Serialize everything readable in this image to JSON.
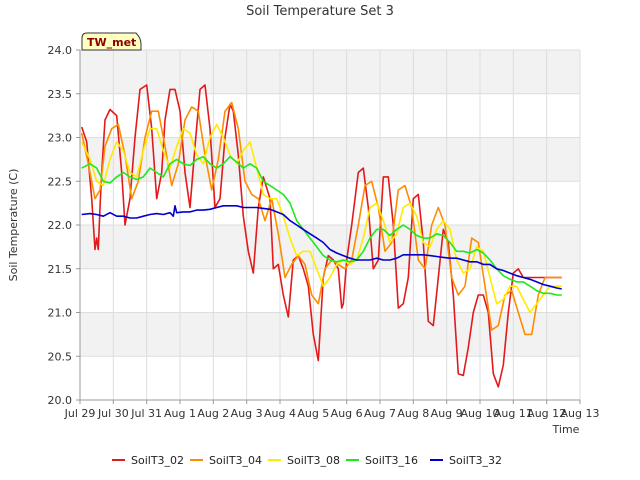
{
  "chart_data": {
    "type": "line",
    "title": "Soil Temperature Set 3",
    "xlabel": "Time",
    "ylabel": "Soil Temperature (C)",
    "station_label": "TW_met",
    "ylim": [
      20.0,
      24.0
    ],
    "yticks": [
      "20.0",
      "20.5",
      "21.0",
      "21.5",
      "22.0",
      "22.5",
      "23.0",
      "23.5",
      "24.0"
    ],
    "xlim": [
      0,
      15
    ],
    "x_unit": "days from Jul 29",
    "xticks": [
      {
        "pos": 0,
        "label": "Jul 29"
      },
      {
        "pos": 1,
        "label": "Jul 30"
      },
      {
        "pos": 2,
        "label": "Jul 31"
      },
      {
        "pos": 3,
        "label": "Aug 1"
      },
      {
        "pos": 4,
        "label": "Aug 2"
      },
      {
        "pos": 5,
        "label": "Aug 3"
      },
      {
        "pos": 6,
        "label": "Aug 4"
      },
      {
        "pos": 7,
        "label": "Aug 5"
      },
      {
        "pos": 8,
        "label": "Aug 6"
      },
      {
        "pos": 9,
        "label": "Aug 7"
      },
      {
        "pos": 10,
        "label": "Aug 8"
      },
      {
        "pos": 11,
        "label": "Aug 9"
      },
      {
        "pos": 12,
        "label": "Aug 10"
      },
      {
        "pos": 13,
        "label": "Aug 11"
      },
      {
        "pos": 14,
        "label": "Aug 12"
      },
      {
        "pos": 15,
        "label": "Aug 13"
      }
    ],
    "grid": true,
    "legend_position": "bottom",
    "series": [
      {
        "name": "SoilT3_02",
        "color": "#e31a1c",
        "x": [
          0.05,
          0.2,
          0.35,
          0.45,
          0.5,
          0.55,
          0.6,
          0.65,
          0.75,
          0.9,
          1.1,
          1.25,
          1.35,
          1.5,
          1.65,
          1.8,
          2.0,
          2.15,
          2.3,
          2.45,
          2.55,
          2.7,
          2.85,
          3.0,
          3.15,
          3.3,
          3.45,
          3.6,
          3.75,
          3.9,
          4.05,
          4.2,
          4.35,
          4.5,
          4.6,
          4.75,
          4.9,
          5.05,
          5.2,
          5.35,
          5.5,
          5.7,
          5.8,
          5.95,
          6.1,
          6.25,
          6.4,
          6.55,
          6.7,
          6.85,
          7.0,
          7.15,
          7.3,
          7.45,
          7.6,
          7.75,
          7.85,
          7.9,
          8.0,
          8.15,
          8.35,
          8.5,
          8.65,
          8.8,
          8.95,
          9.1,
          9.25,
          9.4,
          9.55,
          9.7,
          9.85,
          10.0,
          10.15,
          10.3,
          10.45,
          10.6,
          10.75,
          10.9,
          11.05,
          11.2,
          11.35,
          11.5,
          11.65,
          11.8,
          11.95,
          12.1,
          12.25,
          12.4,
          12.55,
          12.7,
          12.85,
          13.0,
          13.15,
          13.3,
          13.45,
          13.6,
          13.75,
          13.9,
          14.05,
          14.2,
          14.35,
          14.45
        ],
        "values": [
          23.12,
          22.95,
          22.3,
          21.72,
          21.85,
          21.72,
          22.2,
          22.6,
          23.2,
          23.32,
          23.25,
          22.6,
          22.0,
          22.3,
          23.0,
          23.55,
          23.6,
          23.1,
          22.3,
          22.6,
          23.2,
          23.55,
          23.55,
          23.3,
          22.6,
          22.2,
          22.9,
          23.55,
          23.6,
          23.1,
          22.2,
          22.3,
          23.0,
          23.38,
          23.3,
          22.8,
          22.1,
          21.7,
          21.45,
          22.2,
          22.55,
          22.3,
          21.5,
          21.55,
          21.2,
          20.95,
          21.6,
          21.65,
          21.5,
          21.3,
          20.75,
          20.45,
          21.4,
          21.65,
          21.6,
          21.5,
          21.05,
          21.1,
          21.6,
          22.0,
          22.6,
          22.65,
          22.2,
          21.5,
          21.6,
          22.55,
          22.55,
          22.0,
          21.05,
          21.1,
          21.4,
          22.3,
          22.35,
          21.8,
          20.9,
          20.85,
          21.4,
          21.95,
          21.8,
          21.2,
          20.3,
          20.28,
          20.6,
          21.0,
          21.2,
          21.2,
          21.0,
          20.3,
          20.15,
          20.4,
          21.0,
          21.45,
          21.5,
          21.4,
          21.4,
          21.4,
          21.4,
          21.4,
          21.4,
          21.4,
          21.4,
          21.4
        ]
      },
      {
        "name": "SoilT3_04",
        "color": "#ff8c00",
        "x": [
          0.05,
          0.25,
          0.45,
          0.6,
          0.75,
          0.95,
          1.15,
          1.35,
          1.55,
          1.75,
          1.95,
          2.15,
          2.35,
          2.55,
          2.75,
          2.95,
          3.15,
          3.35,
          3.55,
          3.75,
          3.95,
          4.15,
          4.35,
          4.55,
          4.75,
          4.95,
          5.15,
          5.35,
          5.55,
          5.75,
          5.95,
          6.15,
          6.35,
          6.55,
          6.75,
          6.95,
          7.15,
          7.35,
          7.55,
          7.75,
          7.95,
          8.15,
          8.35,
          8.55,
          8.75,
          8.95,
          9.15,
          9.35,
          9.55,
          9.75,
          9.95,
          10.15,
          10.35,
          10.55,
          10.75,
          10.95,
          11.15,
          11.35,
          11.55,
          11.75,
          11.95,
          12.15,
          12.35,
          12.55,
          12.75,
          12.95,
          13.15,
          13.35,
          13.55,
          13.75,
          13.95,
          14.15,
          14.35,
          14.45
        ],
        "values": [
          23.05,
          22.7,
          22.3,
          22.4,
          22.9,
          23.1,
          23.15,
          22.8,
          22.3,
          22.5,
          23.0,
          23.3,
          23.3,
          22.9,
          22.45,
          22.7,
          23.2,
          23.35,
          23.3,
          22.8,
          22.4,
          22.75,
          23.3,
          23.4,
          23.1,
          22.5,
          22.35,
          22.3,
          22.05,
          22.3,
          21.9,
          21.4,
          21.55,
          21.65,
          21.55,
          21.2,
          21.1,
          21.5,
          21.6,
          21.55,
          21.5,
          21.6,
          22.0,
          22.45,
          22.5,
          22.2,
          21.7,
          21.8,
          22.4,
          22.45,
          22.2,
          21.6,
          21.5,
          22.0,
          22.2,
          22.0,
          21.4,
          21.2,
          21.3,
          21.85,
          21.8,
          21.3,
          20.8,
          20.85,
          21.2,
          21.25,
          21.0,
          20.75,
          20.75,
          21.2,
          21.4,
          21.4,
          21.4,
          21.4
        ]
      },
      {
        "name": "SoilT3_08",
        "color": "#ffeb00",
        "x": [
          0.05,
          0.3,
          0.5,
          0.7,
          0.9,
          1.1,
          1.3,
          1.5,
          1.7,
          1.9,
          2.1,
          2.3,
          2.5,
          2.7,
          2.9,
          3.1,
          3.3,
          3.5,
          3.7,
          3.9,
          4.1,
          4.3,
          4.5,
          4.7,
          4.9,
          5.1,
          5.3,
          5.5,
          5.7,
          5.9,
          6.1,
          6.3,
          6.5,
          6.7,
          6.9,
          7.1,
          7.3,
          7.5,
          7.7,
          7.9,
          8.1,
          8.3,
          8.5,
          8.7,
          8.9,
          9.1,
          9.3,
          9.5,
          9.7,
          9.9,
          10.1,
          10.3,
          10.5,
          10.7,
          10.9,
          11.1,
          11.3,
          11.5,
          11.7,
          11.9,
          12.1,
          12.3,
          12.5,
          12.7,
          12.9,
          13.1,
          13.3,
          13.5,
          13.7,
          13.9,
          14.1,
          14.3,
          14.45
        ],
        "values": [
          22.95,
          22.75,
          22.5,
          22.45,
          22.75,
          22.95,
          22.85,
          22.6,
          22.55,
          22.85,
          23.1,
          23.1,
          22.85,
          22.65,
          22.9,
          23.1,
          23.05,
          22.8,
          22.7,
          23.0,
          23.15,
          23.0,
          22.8,
          22.7,
          22.85,
          22.95,
          22.65,
          22.35,
          22.3,
          22.3,
          22.1,
          21.85,
          21.65,
          21.7,
          21.7,
          21.5,
          21.3,
          21.4,
          21.55,
          21.6,
          21.55,
          21.6,
          21.85,
          22.2,
          22.25,
          22.05,
          21.8,
          21.9,
          22.2,
          22.25,
          22.1,
          21.8,
          21.75,
          21.95,
          22.05,
          21.95,
          21.6,
          21.45,
          21.5,
          21.75,
          21.7,
          21.4,
          21.1,
          21.15,
          21.3,
          21.3,
          21.15,
          21.0,
          21.1,
          21.2,
          21.3,
          21.3,
          21.3
        ]
      },
      {
        "name": "SoilT3_16",
        "color": "#1ee81e",
        "x": [
          0.05,
          0.3,
          0.5,
          0.7,
          0.9,
          1.1,
          1.3,
          1.5,
          1.7,
          1.9,
          2.1,
          2.3,
          2.5,
          2.7,
          2.9,
          3.1,
          3.3,
          3.5,
          3.7,
          3.9,
          4.1,
          4.3,
          4.5,
          4.7,
          4.9,
          5.1,
          5.3,
          5.5,
          5.7,
          5.9,
          6.1,
          6.3,
          6.5,
          6.7,
          6.9,
          7.1,
          7.3,
          7.5,
          7.7,
          7.9,
          8.1,
          8.3,
          8.5,
          8.7,
          8.9,
          9.1,
          9.3,
          9.5,
          9.7,
          9.9,
          10.1,
          10.3,
          10.5,
          10.7,
          10.9,
          11.1,
          11.3,
          11.5,
          11.7,
          11.9,
          12.1,
          12.3,
          12.5,
          12.7,
          12.9,
          13.1,
          13.3,
          13.5,
          13.7,
          13.9,
          14.1,
          14.3,
          14.45
        ],
        "values": [
          22.65,
          22.7,
          22.65,
          22.5,
          22.48,
          22.55,
          22.6,
          22.55,
          22.52,
          22.55,
          22.65,
          22.6,
          22.55,
          22.7,
          22.75,
          22.7,
          22.68,
          22.75,
          22.78,
          22.7,
          22.65,
          22.7,
          22.78,
          22.72,
          22.65,
          22.7,
          22.65,
          22.5,
          22.45,
          22.4,
          22.35,
          22.25,
          22.05,
          21.95,
          21.85,
          21.75,
          21.65,
          21.6,
          21.58,
          21.6,
          21.58,
          21.6,
          21.7,
          21.85,
          21.95,
          21.95,
          21.88,
          21.95,
          22.0,
          21.95,
          21.88,
          21.85,
          21.85,
          21.9,
          21.88,
          21.8,
          21.7,
          21.7,
          21.68,
          21.72,
          21.68,
          21.6,
          21.5,
          21.42,
          21.38,
          21.35,
          21.35,
          21.3,
          21.25,
          21.22,
          21.22,
          21.2,
          21.2
        ]
      },
      {
        "name": "SoilT3_32",
        "color": "#0000cd",
        "x": [
          0.05,
          0.3,
          0.5,
          0.7,
          0.9,
          1.1,
          1.3,
          1.5,
          1.7,
          1.9,
          2.1,
          2.3,
          2.5,
          2.7,
          2.8,
          2.85,
          2.9,
          3.1,
          3.3,
          3.5,
          3.7,
          3.9,
          4.1,
          4.3,
          4.5,
          4.7,
          4.9,
          5.1,
          5.3,
          5.5,
          5.7,
          5.9,
          6.1,
          6.3,
          6.5,
          6.7,
          6.9,
          7.1,
          7.3,
          7.5,
          7.7,
          7.9,
          8.1,
          8.3,
          8.5,
          8.7,
          8.9,
          9.1,
          9.3,
          9.5,
          9.7,
          9.9,
          10.1,
          10.3,
          10.5,
          10.7,
          10.9,
          11.1,
          11.3,
          11.5,
          11.7,
          11.9,
          12.1,
          12.3,
          12.5,
          12.7,
          12.9,
          13.1,
          13.3,
          13.5,
          13.7,
          13.9,
          14.1,
          14.3,
          14.45
        ],
        "values": [
          22.12,
          22.13,
          22.12,
          22.1,
          22.14,
          22.1,
          22.1,
          22.08,
          22.08,
          22.1,
          22.12,
          22.13,
          22.12,
          22.14,
          22.1,
          22.22,
          22.14,
          22.15,
          22.15,
          22.17,
          22.17,
          22.18,
          22.2,
          22.22,
          22.22,
          22.22,
          22.2,
          22.2,
          22.2,
          22.19,
          22.18,
          22.15,
          22.12,
          22.05,
          22.0,
          21.95,
          21.9,
          21.85,
          21.8,
          21.72,
          21.68,
          21.65,
          21.62,
          21.6,
          21.6,
          21.6,
          21.62,
          21.6,
          21.6,
          21.62,
          21.66,
          21.66,
          21.66,
          21.66,
          21.65,
          21.64,
          21.63,
          21.62,
          21.62,
          21.6,
          21.58,
          21.58,
          21.55,
          21.55,
          21.5,
          21.48,
          21.45,
          21.42,
          21.4,
          21.38,
          21.35,
          21.32,
          21.3,
          21.28,
          21.27
        ]
      }
    ]
  }
}
